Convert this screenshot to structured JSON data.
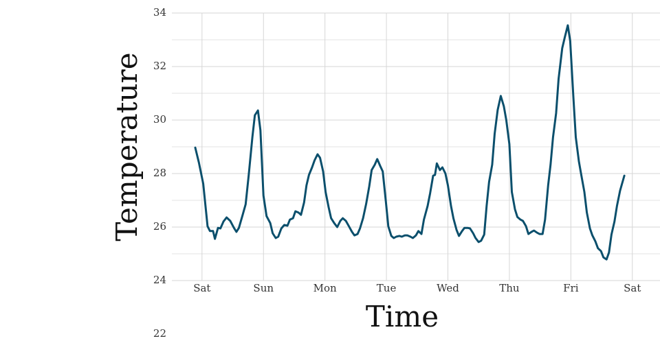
{
  "chart_data": {
    "type": "line",
    "x_label": "Time",
    "y_label": "Temperature",
    "xlim": [
      -0.49,
      7.45
    ],
    "xticks": [
      {
        "value": 0,
        "label": "Sat"
      },
      {
        "value": 1,
        "label": "Sun"
      },
      {
        "value": 2,
        "label": "Mon"
      },
      {
        "value": 3,
        "label": "Tue"
      },
      {
        "value": 4,
        "label": "Wed"
      },
      {
        "value": 5,
        "label": "Thu"
      },
      {
        "value": 6,
        "label": "Fri"
      },
      {
        "value": 7,
        "label": "Sat"
      }
    ],
    "ylim": [
      24,
      34
    ],
    "yticks": [
      22,
      24,
      26,
      28,
      30,
      32,
      34
    ],
    "y_minor_ticks": [
      25,
      27,
      29,
      31,
      33
    ],
    "grid": true,
    "color": "#0b4f6c",
    "x": [
      -0.11,
      -0.05,
      0.02,
      0.09,
      0.13,
      0.18,
      0.21,
      0.26,
      0.3,
      0.35,
      0.4,
      0.46,
      0.52,
      0.56,
      0.6,
      0.66,
      0.71,
      0.76,
      0.82,
      0.86,
      0.91,
      0.95,
      1.0,
      1.05,
      1.11,
      1.15,
      1.2,
      1.24,
      1.29,
      1.34,
      1.39,
      1.43,
      1.48,
      1.52,
      1.57,
      1.61,
      1.66,
      1.7,
      1.74,
      1.79,
      1.83,
      1.88,
      1.92,
      1.97,
      2.01,
      2.06,
      2.1,
      2.15,
      2.2,
      2.25,
      2.29,
      2.34,
      2.39,
      2.44,
      2.48,
      2.53,
      2.57,
      2.62,
      2.67,
      2.72,
      2.76,
      2.81,
      2.85,
      2.9,
      2.94,
      2.99,
      3.03,
      3.08,
      3.12,
      3.16,
      3.21,
      3.25,
      3.3,
      3.34,
      3.39,
      3.43,
      3.48,
      3.52,
      3.57,
      3.61,
      3.67,
      3.71,
      3.76,
      3.79,
      3.82,
      3.87,
      3.91,
      3.96,
      4.0,
      4.05,
      4.09,
      4.14,
      4.18,
      4.23,
      4.27,
      4.32,
      4.36,
      4.41,
      4.45,
      4.5,
      4.54,
      4.59,
      4.63,
      4.67,
      4.72,
      4.76,
      4.81,
      4.86,
      4.91,
      4.95,
      5.0,
      5.04,
      5.09,
      5.13,
      5.18,
      5.22,
      5.27,
      5.31,
      5.36,
      5.4,
      5.45,
      5.49,
      5.54,
      5.58,
      5.63,
      5.67,
      5.71,
      5.76,
      5.8,
      5.86,
      5.9,
      5.95,
      5.99,
      6.04,
      6.08,
      6.13,
      6.17,
      6.22,
      6.26,
      6.31,
      6.35,
      6.4,
      6.44,
      6.49,
      6.53,
      6.58,
      6.62,
      6.66,
      6.71,
      6.75,
      6.8,
      6.87
    ],
    "values": [
      28.97,
      28.41,
      27.62,
      26.03,
      25.85,
      25.85,
      25.56,
      25.97,
      25.95,
      26.21,
      26.36,
      26.23,
      25.97,
      25.82,
      25.97,
      26.44,
      26.85,
      27.95,
      29.36,
      30.18,
      30.36,
      29.62,
      27.18,
      26.41,
      26.15,
      25.77,
      25.59,
      25.64,
      25.95,
      26.08,
      26.05,
      26.28,
      26.33,
      26.59,
      26.54,
      26.46,
      26.92,
      27.56,
      27.95,
      28.23,
      28.49,
      28.72,
      28.59,
      28.08,
      27.31,
      26.74,
      26.33,
      26.15,
      26.0,
      26.23,
      26.33,
      26.23,
      26.03,
      25.82,
      25.69,
      25.74,
      25.95,
      26.33,
      26.87,
      27.51,
      28.13,
      28.33,
      28.54,
      28.28,
      28.08,
      26.97,
      26.03,
      25.67,
      25.59,
      25.64,
      25.67,
      25.64,
      25.69,
      25.69,
      25.64,
      25.59,
      25.69,
      25.85,
      25.74,
      26.28,
      26.79,
      27.26,
      27.92,
      27.95,
      28.38,
      28.13,
      28.23,
      28.0,
      27.56,
      26.79,
      26.33,
      25.9,
      25.67,
      25.85,
      25.97,
      25.97,
      25.95,
      25.77,
      25.59,
      25.44,
      25.49,
      25.72,
      26.79,
      27.69,
      28.33,
      29.49,
      30.38,
      30.9,
      30.51,
      30.0,
      29.1,
      27.31,
      26.67,
      26.38,
      26.28,
      26.23,
      26.03,
      25.74,
      25.82,
      25.87,
      25.79,
      25.74,
      25.74,
      26.28,
      27.56,
      28.33,
      29.36,
      30.26,
      31.54,
      32.69,
      33.08,
      33.54,
      32.95,
      30.9,
      29.36,
      28.46,
      27.95,
      27.31,
      26.54,
      25.95,
      25.69,
      25.46,
      25.21,
      25.1,
      24.87,
      24.79,
      25.05,
      25.72,
      26.21,
      26.79,
      27.36,
      27.92
    ]
  }
}
